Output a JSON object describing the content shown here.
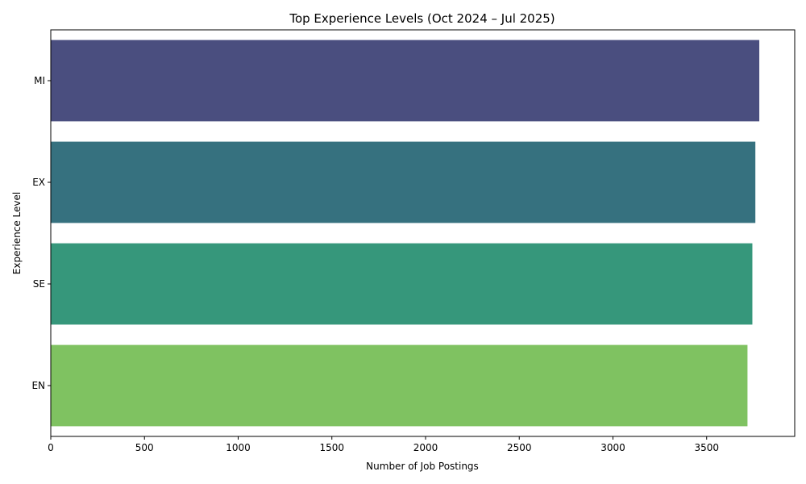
{
  "chart_data": {
    "type": "bar",
    "orientation": "horizontal",
    "title": "Top Experience Levels (Oct 2024 – Jul 2025)",
    "xlabel": "Number of Job Postings",
    "ylabel": "Experience Level",
    "categories": [
      "MI",
      "EX",
      "SE",
      "EN"
    ],
    "values": [
      3781,
      3760,
      3744,
      3718
    ],
    "colors": [
      "#4a4e7f",
      "#36717f",
      "#36977b",
      "#7fc261"
    ],
    "xlim": [
      0,
      3970
    ],
    "xticks": [
      0,
      500,
      1000,
      1500,
      2000,
      2500,
      3000,
      3500
    ],
    "grid": false,
    "legend": "none"
  }
}
